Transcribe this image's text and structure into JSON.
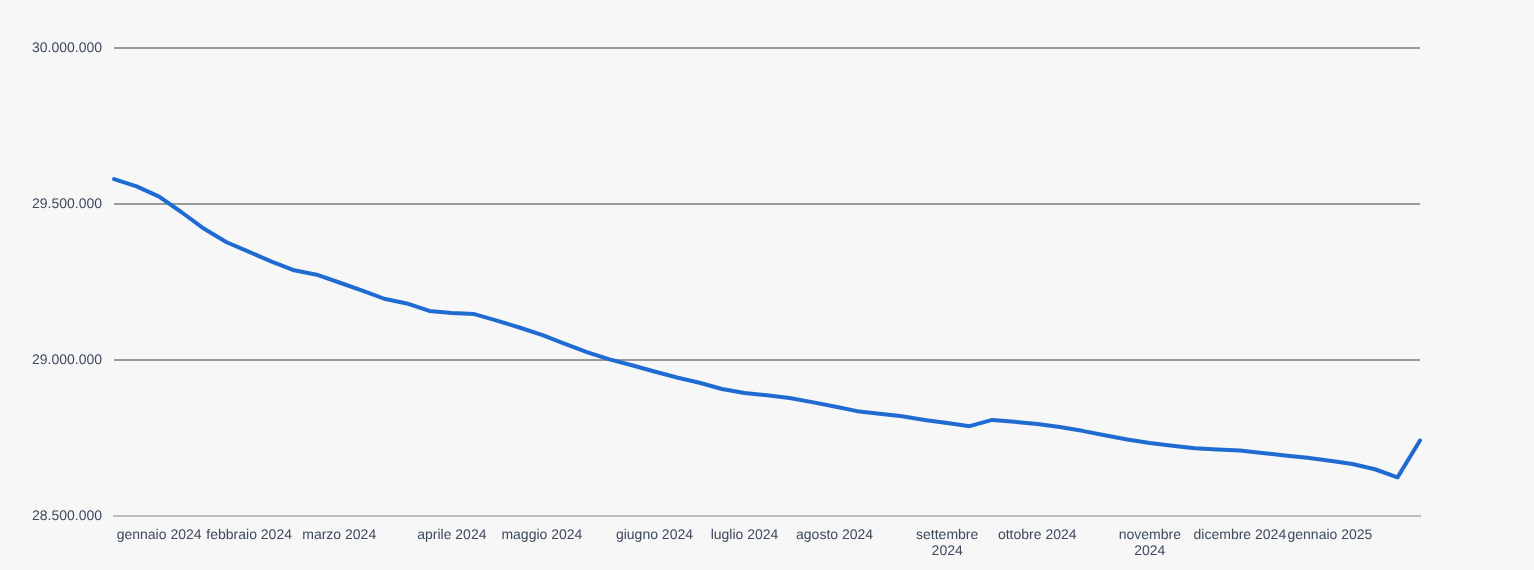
{
  "chart_data": {
    "type": "line",
    "categories": [
      null,
      null,
      "gennaio 2024",
      null,
      null,
      null,
      "febbraio 2024",
      null,
      null,
      null,
      "marzo 2024",
      null,
      null,
      null,
      null,
      "aprile 2024",
      null,
      null,
      null,
      "maggio 2024",
      null,
      null,
      null,
      null,
      "giugno 2024",
      null,
      null,
      null,
      "luglio 2024",
      null,
      null,
      null,
      "agosto 2024",
      null,
      null,
      null,
      null,
      "settembre 2024",
      null,
      null,
      null,
      "ottobre 2024",
      null,
      null,
      null,
      null,
      "novembre 2024",
      null,
      null,
      null,
      "dicembre 2024",
      null,
      null,
      null,
      "gennaio 2025",
      null,
      null,
      null,
      null
    ],
    "series": [
      {
        "color": "#1f6bd1",
        "values": [
          29580000,
          29557000,
          29524000,
          29474000,
          29421000,
          29378000,
          29347000,
          29316000,
          29288000,
          29274000,
          29249000,
          29224000,
          29197000,
          29182000,
          29158000,
          29151000,
          29148000,
          29127000,
          29105000,
          29081000,
          29053000,
          29026000,
          29003000,
          28984000,
          28964000,
          28945000,
          28928000,
          28908000,
          28895000,
          28888000,
          28879000,
          28866000,
          28852000,
          28837000,
          28829000,
          28821000,
          28809000,
          28799000,
          28789000,
          28809000,
          28803000,
          28796000,
          28786000,
          28774000,
          28760000,
          28746000,
          28735000,
          28726000,
          28718000,
          28714000,
          28711000,
          28703000,
          28695000,
          28688000,
          28678000,
          28668000,
          28651000,
          28625000,
          28743000
        ]
      }
    ],
    "ylim": [
      28500000,
      30000000
    ],
    "yticks": [
      {
        "value": 28500000,
        "label": "28.500.000"
      },
      {
        "value": 29000000,
        "label": "29.000.000"
      },
      {
        "value": 29500000,
        "label": "29.500.000"
      },
      {
        "value": 30000000,
        "label": "30.000.000"
      }
    ],
    "grid": "y",
    "legend": false,
    "marker": "none",
    "line_style": "solid"
  }
}
